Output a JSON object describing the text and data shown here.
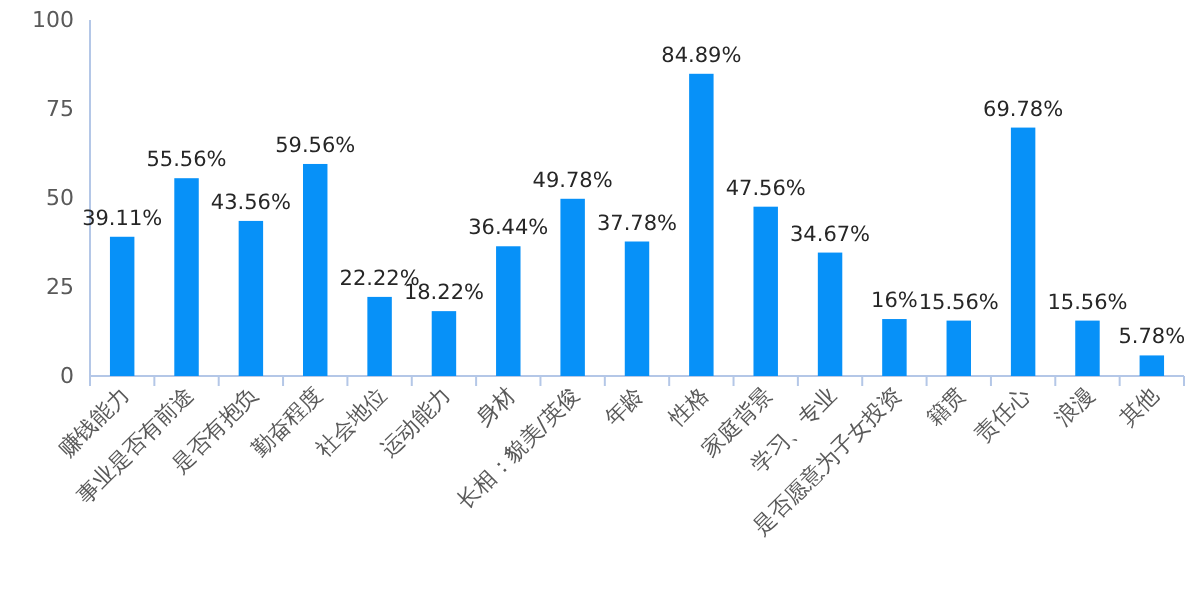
{
  "chart_data": {
    "type": "bar",
    "categories": [
      "赚钱能力",
      "事业是否有前途",
      "是否有抱负",
      "勤奋程度",
      "社会地位",
      "运动能力",
      "身材",
      "长相：貌美/英俊",
      "年龄",
      "性格",
      "家庭背景",
      "学习、专业",
      "是否愿意为子女投资",
      "籍贯",
      "责任心",
      "浪漫",
      "其他"
    ],
    "values": [
      39.11,
      55.56,
      43.56,
      59.56,
      22.22,
      18.22,
      36.44,
      49.78,
      37.78,
      84.89,
      47.56,
      34.67,
      16,
      15.56,
      69.78,
      15.56,
      5.78
    ],
    "value_labels": [
      "39.11%",
      "55.56%",
      "43.56%",
      "59.56%",
      "22.22%",
      "18.22%",
      "36.44%",
      "49.78%",
      "37.78%",
      "84.89%",
      "47.56%",
      "34.67%",
      "16%",
      "15.56%",
      "69.78%",
      "15.56%",
      "5.78%"
    ],
    "color": "#0791f8",
    "ylim": [
      0,
      100
    ],
    "yticks": [
      0,
      25,
      50,
      75,
      100
    ]
  }
}
